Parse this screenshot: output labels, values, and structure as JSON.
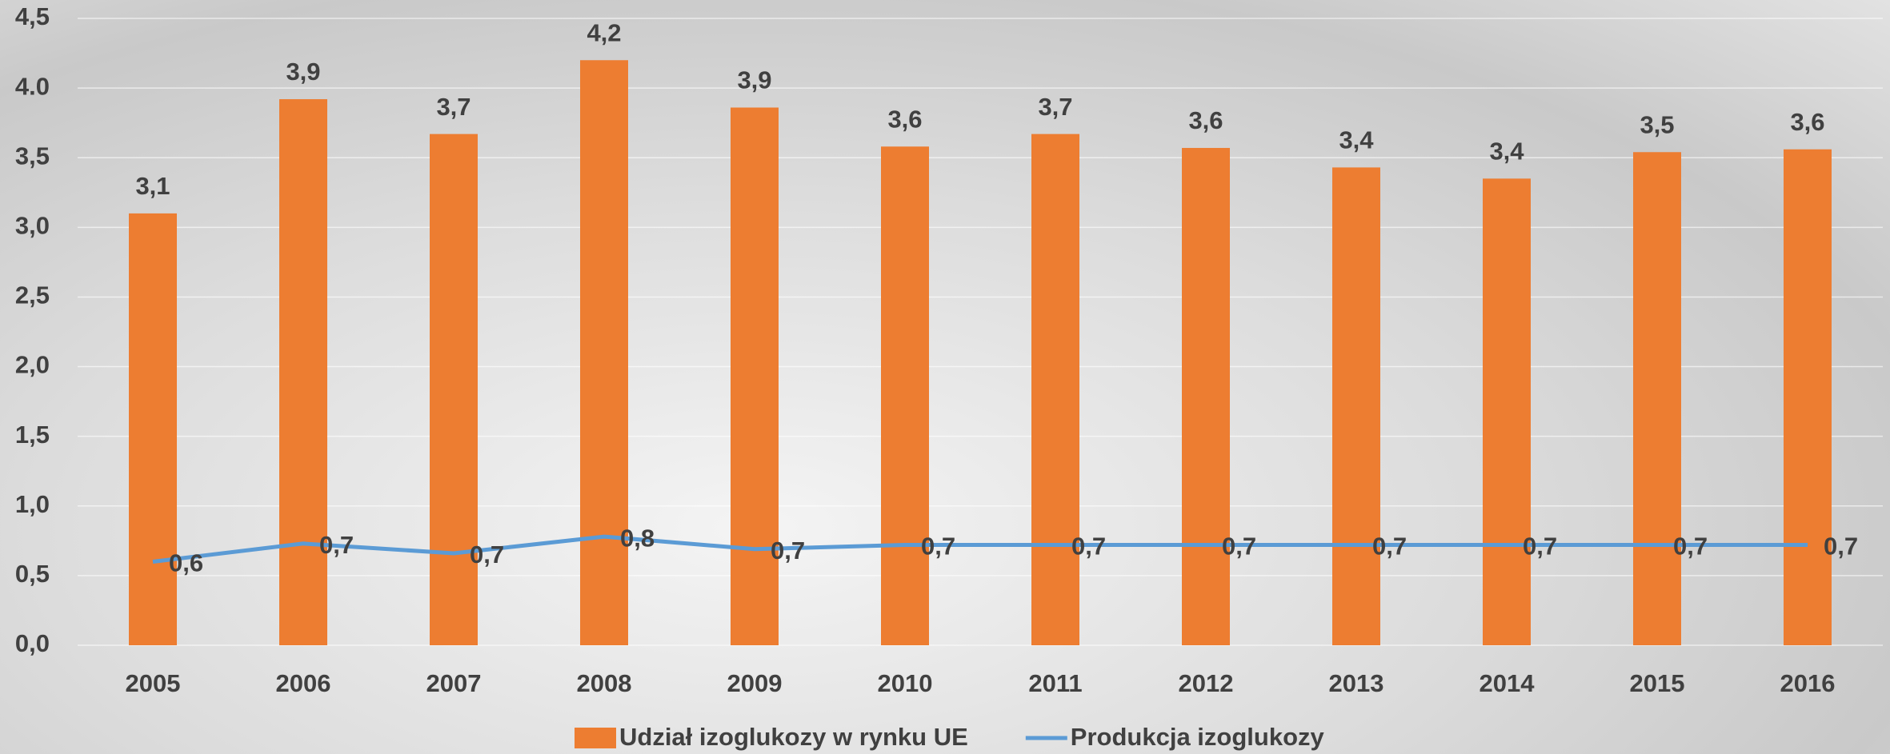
{
  "chart_data": {
    "type": "bar-line",
    "categories": [
      "2005",
      "2006",
      "2007",
      "2008",
      "2009",
      "2010",
      "2011",
      "2012",
      "2013",
      "2014",
      "2015",
      "2016"
    ],
    "series": [
      {
        "name": "Udział izoglukozy w rynku UE",
        "type": "bar",
        "color": "#ed7d31",
        "values": [
          3.1,
          3.92,
          3.67,
          4.2,
          3.86,
          3.58,
          3.67,
          3.57,
          3.43,
          3.35,
          3.54,
          3.56
        ],
        "value_labels": [
          "3,1",
          "3,9",
          "3,7",
          "4,2",
          "3,9",
          "3,6",
          "3,7",
          "3,6",
          "3,4",
          "3,4",
          "3,5",
          "3,6"
        ]
      },
      {
        "name": "Produkcja izoglukozy",
        "type": "line",
        "color": "#5b9bd5",
        "values": [
          0.6,
          0.73,
          0.66,
          0.78,
          0.69,
          0.72,
          0.72,
          0.72,
          0.72,
          0.72,
          0.72,
          0.72
        ],
        "value_labels": [
          "0,6",
          "0,7",
          "0,7",
          "0,8",
          "0,7",
          "0,7",
          "0,7",
          "0,7",
          "0,7",
          "0,7",
          "0,7",
          "0,7"
        ]
      }
    ],
    "ylim": [
      0,
      4.5
    ],
    "yticks": [
      {
        "value": 0,
        "label": "0,0"
      },
      {
        "value": 0.5,
        "label": "0,5"
      },
      {
        "value": 1,
        "label": "1,0"
      },
      {
        "value": 1.5,
        "label": "1,5"
      },
      {
        "value": 2,
        "label": "2,0"
      },
      {
        "value": 2.5,
        "label": "2,5"
      },
      {
        "value": 3,
        "label": "3,0"
      },
      {
        "value": 3.5,
        "label": "3,5"
      },
      {
        "value": 4,
        "label": "4.0"
      },
      {
        "value": 4.5,
        "label": "4,5"
      }
    ],
    "grid": true,
    "legend": "bottom"
  }
}
